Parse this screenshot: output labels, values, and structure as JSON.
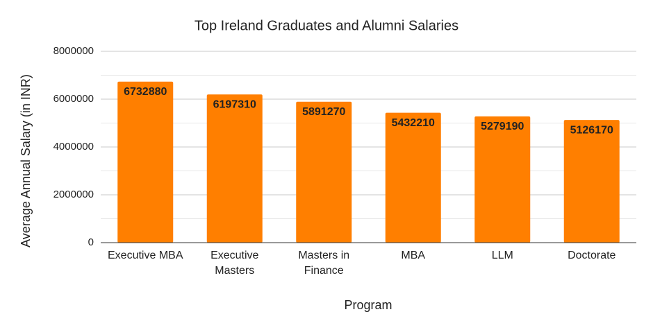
{
  "chart_data": {
    "type": "bar",
    "title": "Top Ireland Graduates and Alumni Salaries",
    "x_label": "Program",
    "y_label": "Average Annual Salary (in INR)",
    "categories": [
      "Executive MBA",
      "Executive Masters",
      "Masters in Finance",
      "MBA",
      "LLM",
      "Doctorate"
    ],
    "values": [
      6732880,
      6197310,
      5891270,
      5432210,
      5279190,
      5126170
    ],
    "color": "#ff7f00",
    "ylim": [
      0,
      8000000
    ],
    "yticks": [
      0,
      2000000,
      4000000,
      6000000,
      8000000
    ],
    "minor_yticks": [
      1000000,
      3000000,
      5000000,
      7000000
    ],
    "grid": true
  }
}
